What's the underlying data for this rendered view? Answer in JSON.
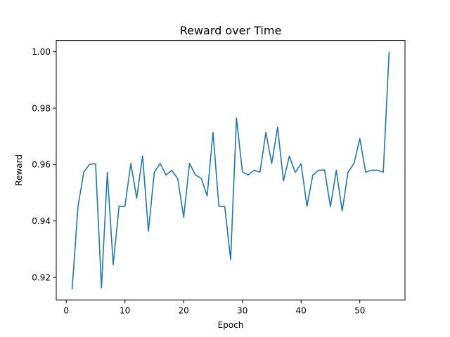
{
  "chart_data": {
    "type": "line",
    "title": "Reward over Time",
    "xlabel": "Epoch",
    "ylabel": "Reward",
    "xlim": [
      -1.7,
      57.7
    ],
    "ylim": [
      0.912,
      1.004
    ],
    "xticks": [
      0,
      10,
      20,
      30,
      40,
      50
    ],
    "yticks": [
      0.92,
      0.94,
      0.96,
      0.98,
      1.0
    ],
    "ytick_labels": [
      "0.92",
      "0.94",
      "0.96",
      "0.98",
      "1.00"
    ],
    "grid": false,
    "legend": "none",
    "colors": {
      "line": "#1f77b4",
      "axes": "#000000",
      "background": "#ffffff"
    },
    "series": [
      {
        "x": [
          1,
          2,
          3,
          4,
          5,
          6,
          7,
          8,
          9,
          10,
          11,
          12,
          13,
          14,
          15,
          16,
          17,
          18,
          19,
          20,
          21,
          22,
          23,
          24,
          25,
          26,
          27,
          28,
          29,
          30,
          31,
          32,
          33,
          34,
          35,
          36,
          37,
          38,
          39,
          40,
          41,
          42,
          43,
          44,
          45,
          46,
          47,
          48,
          49,
          50,
          51,
          52,
          53,
          54,
          55
        ],
        "values": [
          0.9157,
          0.9451,
          0.9574,
          0.9601,
          0.9603,
          0.9163,
          0.9572,
          0.9245,
          0.9452,
          0.9452,
          0.9604,
          0.9481,
          0.963,
          0.9364,
          0.9573,
          0.9604,
          0.9563,
          0.9579,
          0.9549,
          0.9413,
          0.9604,
          0.9563,
          0.9551,
          0.9489,
          0.9714,
          0.9452,
          0.9451,
          0.9263,
          0.9765,
          0.9574,
          0.9563,
          0.958,
          0.9573,
          0.9714,
          0.9604,
          0.9732,
          0.9542,
          0.963,
          0.9572,
          0.9603,
          0.9452,
          0.9563,
          0.958,
          0.9581,
          0.9451,
          0.958,
          0.9435,
          0.9573,
          0.9603,
          0.9692,
          0.9573,
          0.958,
          0.958,
          0.9573,
          1.0
        ]
      }
    ]
  }
}
